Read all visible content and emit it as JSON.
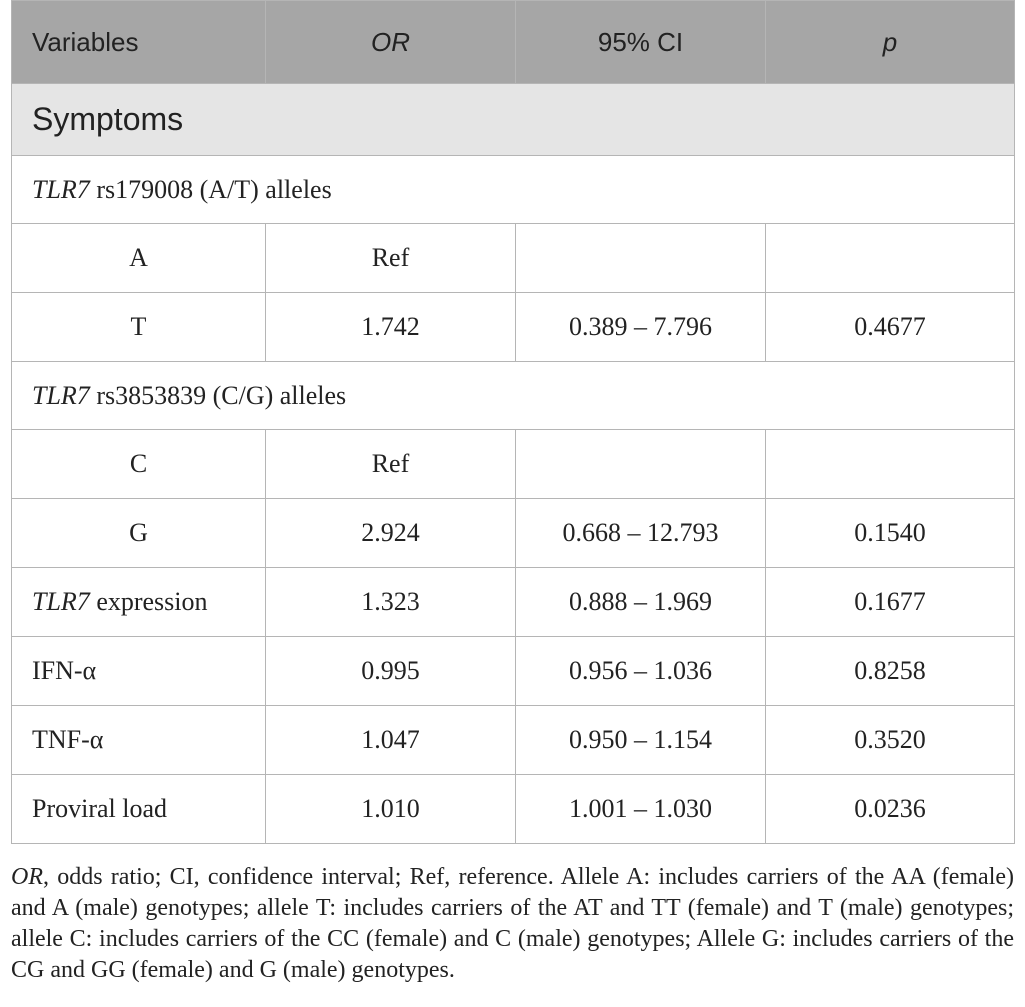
{
  "header": {
    "col1": "Variables",
    "col2": "OR",
    "col3": "95% CI",
    "col4": "p"
  },
  "section": {
    "label": "Symptoms"
  },
  "groups": [
    {
      "gene": "TLR7",
      "label": " rs179008 (A/T) alleles",
      "rows": [
        {
          "variable": "A",
          "or": "Ref",
          "ci": "",
          "p": ""
        },
        {
          "variable": "T",
          "or": "1.742",
          "ci": "0.389 – 7.796",
          "p": "0.4677"
        }
      ]
    },
    {
      "gene": "TLR7",
      "label": " rs3853839 (C/G) alleles",
      "rows": [
        {
          "variable": "C",
          "or": "Ref",
          "ci": "",
          "p": ""
        },
        {
          "variable": "G",
          "or": "2.924",
          "ci": "0.668 – 12.793",
          "p": "0.1540"
        }
      ]
    }
  ],
  "other_rows": [
    {
      "gene": "TLR7",
      "variable": " expression",
      "or": "1.323",
      "ci": "0.888 – 1.969",
      "p": "0.1677"
    },
    {
      "gene": "",
      "variable": "IFN-α",
      "or": "0.995",
      "ci": "0.956 – 1.036",
      "p": "0.8258"
    },
    {
      "gene": "",
      "variable": "TNF-α",
      "or": "1.047",
      "ci": "0.950 – 1.154",
      "p": "0.3520"
    },
    {
      "gene": "",
      "variable": "Proviral load",
      "or": "1.010",
      "ci": "1.001 – 1.030",
      "p": "0.0236"
    }
  ],
  "footnote": {
    "or_abbr": "OR",
    "or_def": ", odds ratio",
    "rest": "; CI, confidence interval; Ref, reference. Allele A: includes carriers of the AA (female) and A (male) genotypes; allele T: includes carriers of the AT and TT (female) and T (male) genotypes; allele C: includes carriers of the CC (female) and C (male) genotypes; Allele G: includes carriers of the CG and GG (female) and G (male) genotypes."
  }
}
